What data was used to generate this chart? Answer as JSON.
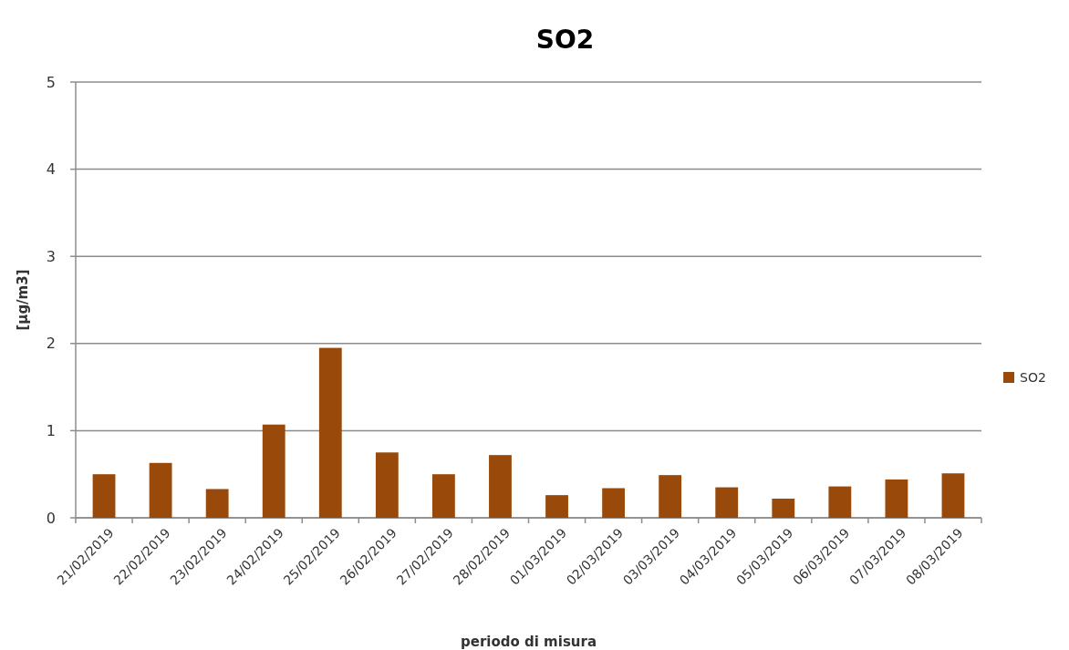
{
  "chart_data": {
    "type": "bar",
    "title": "SO2",
    "xlabel": "periodo di misura",
    "ylabel": "[µg/m3]",
    "categories": [
      "21/02/2019",
      "22/02/2019",
      "23/02/2019",
      "24/02/2019",
      "25/02/2019",
      "26/02/2019",
      "27/02/2019",
      "28/02/2019",
      "01/03/2019",
      "02/03/2019",
      "03/03/2019",
      "04/03/2019",
      "05/03/2019",
      "06/03/2019",
      "07/03/2019",
      "08/03/2019"
    ],
    "series": [
      {
        "name": "SO2",
        "color": "#994a0b",
        "values": [
          0.5,
          0.63,
          0.33,
          1.07,
          1.95,
          0.75,
          0.5,
          0.72,
          0.26,
          0.34,
          0.49,
          0.35,
          0.22,
          0.36,
          0.44,
          0.51
        ]
      }
    ],
    "ylim": [
      0,
      5
    ],
    "yticks": [
      0,
      1,
      2,
      3,
      4,
      5
    ],
    "grid": "y",
    "legend": "right"
  }
}
